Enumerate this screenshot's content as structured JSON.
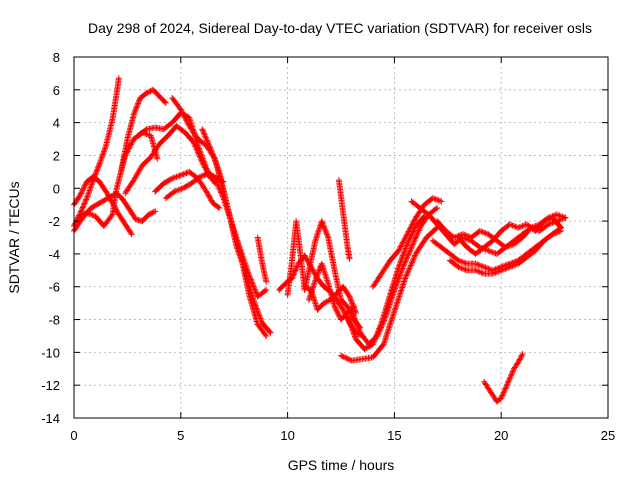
{
  "chart_data": {
    "type": "scatter",
    "title": "Day 298 of 2024, Sidereal Day-to-day VTEC variation (SDTVAR) for receiver osls",
    "xlabel": "GPS time / hours",
    "ylabel": "SDTVAR / TECUs",
    "xlim": [
      0,
      25
    ],
    "ylim": [
      -14,
      8
    ],
    "xticks": [
      0,
      5,
      10,
      15,
      20,
      25
    ],
    "yticks": [
      -14,
      -12,
      -10,
      -8,
      -6,
      -4,
      -2,
      0,
      2,
      4,
      6,
      8
    ],
    "grid": true,
    "marker": "plus",
    "color": "#ff0000",
    "series": [
      {
        "x": [
          0.0,
          0.3,
          0.6,
          0.9,
          1.2,
          1.5,
          1.8,
          2.0,
          2.1
        ],
        "y": [
          -2.3,
          -1.5,
          -0.6,
          0.5,
          1.5,
          2.6,
          4.2,
          5.8,
          6.7
        ]
      },
      {
        "x": [
          0.0,
          0.3,
          0.6,
          0.9,
          1.2,
          1.5,
          1.8,
          2.1,
          2.4,
          2.7
        ],
        "y": [
          -1.0,
          -0.4,
          0.4,
          0.7,
          0.4,
          -0.2,
          -0.9,
          -1.6,
          -2.2,
          -2.8
        ]
      },
      {
        "x": [
          0.0,
          0.4,
          0.8,
          1.2,
          1.6,
          2.0,
          2.3,
          2.6,
          2.9,
          3.2,
          3.5,
          3.8
        ],
        "y": [
          -2.6,
          -1.8,
          -1.2,
          -0.9,
          -0.6,
          -0.3,
          -0.7,
          -1.3,
          -1.9,
          -2.0,
          -1.6,
          -1.4
        ]
      },
      {
        "x": [
          0.2,
          0.6,
          1.0,
          1.4,
          1.8,
          2.0,
          2.4,
          2.8,
          3.2,
          3.6,
          3.9
        ],
        "y": [
          -1.8,
          -1.5,
          -1.7,
          -2.3,
          -1.6,
          0.0,
          2.0,
          3.0,
          3.4,
          3.2,
          1.8
        ]
      },
      {
        "x": [
          2.2,
          2.5,
          2.8,
          3.1,
          3.4,
          3.7,
          4.0,
          4.3
        ],
        "y": [
          1.0,
          3.0,
          4.5,
          5.5,
          5.8,
          6.0,
          5.6,
          5.2
        ]
      },
      {
        "x": [
          2.4,
          2.8,
          3.2,
          3.6,
          4.0,
          4.4,
          4.8,
          5.2,
          5.6,
          6.0,
          6.4
        ],
        "y": [
          -0.3,
          0.5,
          1.4,
          1.9,
          2.7,
          3.2,
          3.8,
          3.4,
          2.8,
          1.6,
          0.6
        ]
      },
      {
        "x": [
          3.0,
          3.4,
          3.8,
          4.2,
          4.6,
          5.0,
          5.4,
          5.8,
          6.2,
          6.6
        ],
        "y": [
          3.2,
          3.6,
          3.7,
          3.6,
          4.0,
          4.6,
          4.3,
          2.6,
          1.2,
          0.3
        ]
      },
      {
        "x": [
          3.8,
          4.2,
          4.6,
          5.0,
          5.4,
          5.8,
          6.2,
          6.5,
          6.8
        ],
        "y": [
          -0.2,
          0.3,
          0.6,
          0.8,
          1.0,
          0.6,
          -0.2,
          -0.9,
          -1.2
        ]
      },
      {
        "x": [
          4.3,
          4.7,
          5.1,
          5.5,
          5.9,
          6.3,
          6.7,
          7.0
        ],
        "y": [
          -0.6,
          -0.2,
          0.0,
          0.3,
          0.7,
          0.9,
          0.6,
          0.4
        ]
      },
      {
        "x": [
          4.6,
          5.0,
          5.4,
          5.8,
          6.2,
          6.6,
          7.0,
          7.4,
          7.8,
          8.2,
          8.6,
          9.0
        ],
        "y": [
          5.5,
          4.8,
          3.8,
          3.0,
          2.6,
          1.8,
          -0.2,
          -2.2,
          -4.0,
          -6.5,
          -8.3,
          -9.0
        ]
      },
      {
        "x": [
          6.0,
          6.4,
          6.8,
          7.2,
          7.6,
          8.0,
          8.4,
          8.8,
          9.2
        ],
        "y": [
          3.6,
          2.4,
          1.0,
          -1.2,
          -3.5,
          -5.0,
          -6.8,
          -8.2,
          -8.8
        ]
      },
      {
        "x": [
          6.2,
          6.6,
          7.0,
          7.4,
          7.8,
          8.2,
          8.6,
          9.0
        ],
        "y": [
          0.9,
          0.6,
          -0.6,
          -2.2,
          -3.8,
          -5.3,
          -6.6,
          -6.2
        ]
      },
      {
        "x": [
          8.6,
          8.8,
          9.0
        ],
        "y": [
          -3.0,
          -4.5,
          -5.7
        ]
      },
      {
        "x": [
          9.6,
          9.9,
          10.2,
          10.5,
          10.8,
          11.1,
          11.4,
          11.7,
          12.0,
          12.3,
          12.6,
          12.9,
          13.2,
          13.5
        ],
        "y": [
          -6.2,
          -5.8,
          -5.5,
          -4.6,
          -4.1,
          -4.8,
          -5.5,
          -6.0,
          -6.3,
          -6.8,
          -7.4,
          -8.2,
          -8.8,
          -9.0
        ]
      },
      {
        "x": [
          10.0,
          10.2,
          10.4,
          10.6,
          10.8,
          11.0,
          11.3,
          11.6,
          11.9,
          12.2,
          12.5,
          12.8,
          13.1,
          13.4
        ],
        "y": [
          -6.5,
          -4.5,
          -2.0,
          -4.0,
          -6.2,
          -5.0,
          -3.2,
          -2.0,
          -3.0,
          -5.0,
          -6.8,
          -7.2,
          -8.0,
          -8.5
        ]
      },
      {
        "x": [
          10.8,
          11.1,
          11.4,
          11.7,
          12.0,
          12.3,
          12.6,
          12.9,
          13.2
        ],
        "y": [
          -6.0,
          -6.2,
          -7.4,
          -7.0,
          -6.8,
          -6.4,
          -6.0,
          -6.6,
          -7.6
        ]
      },
      {
        "x": [
          11.0,
          11.3,
          11.6,
          11.9,
          12.2,
          12.5,
          12.8,
          13.1
        ],
        "y": [
          -6.8,
          -5.6,
          -4.6,
          -5.8,
          -7.2,
          -8.0,
          -7.6,
          -7.2
        ]
      },
      {
        "x": [
          12.4,
          12.6,
          12.8,
          12.9
        ],
        "y": [
          0.5,
          -1.5,
          -3.5,
          -4.3
        ]
      },
      {
        "x": [
          13.0,
          13.4,
          13.8,
          14.2,
          14.6,
          15.0,
          15.4,
          15.8,
          16.2,
          16.6,
          17.0
        ],
        "y": [
          -7.5,
          -8.8,
          -9.5,
          -9.0,
          -7.8,
          -6.2,
          -4.8,
          -3.6,
          -2.4,
          -1.6,
          -1.2
        ]
      },
      {
        "x": [
          12.8,
          13.2,
          13.6,
          14.0,
          14.4,
          14.8,
          15.2,
          15.6,
          16.0,
          16.4
        ],
        "y": [
          -7.8,
          -9.2,
          -9.8,
          -9.5,
          -8.2,
          -6.5,
          -4.8,
          -3.4,
          -2.3,
          -1.7
        ]
      },
      {
        "x": [
          14.0,
          14.4,
          14.8,
          15.2,
          15.6,
          16.0,
          16.4,
          16.8,
          17.2
        ],
        "y": [
          -6.0,
          -5.2,
          -4.4,
          -3.8,
          -2.8,
          -1.8,
          -1.0,
          -0.6,
          -0.8
        ]
      },
      {
        "x": [
          12.5,
          13.0,
          13.5,
          14.0,
          14.5,
          15.0,
          15.5,
          16.0,
          16.5,
          17.0
        ],
        "y": [
          -10.2,
          -10.5,
          -10.4,
          -10.3,
          -9.5,
          -7.5,
          -5.5,
          -4.0,
          -3.0,
          -2.4
        ]
      },
      {
        "x": [
          15.8,
          16.2,
          16.6,
          17.0,
          17.4,
          17.8,
          18.2,
          18.6,
          19.0,
          19.4,
          19.8,
          20.2,
          20.6,
          21.0,
          21.4,
          21.8,
          22.2,
          22.6,
          23.0
        ],
        "y": [
          -0.8,
          -1.2,
          -1.6,
          -2.2,
          -2.8,
          -3.4,
          -3.0,
          -3.2,
          -3.6,
          -3.8,
          -4.0,
          -3.6,
          -3.2,
          -2.8,
          -2.4,
          -2.6,
          -2.2,
          -2.0,
          -1.8
        ]
      },
      {
        "x": [
          17.0,
          17.4,
          17.8,
          18.2,
          18.6,
          19.0,
          19.4,
          19.8,
          20.2,
          20.6,
          21.0,
          21.4,
          21.8,
          22.2,
          22.6,
          23.0
        ],
        "y": [
          -2.0,
          -2.6,
          -3.0,
          -2.8,
          -3.0,
          -2.6,
          -2.8,
          -3.2,
          -3.6,
          -3.4,
          -3.0,
          -2.4,
          -2.2,
          -1.8,
          -1.6,
          -1.8
        ]
      },
      {
        "x": [
          16.8,
          17.2,
          17.6,
          18.0,
          18.4,
          18.8,
          19.2,
          19.6,
          20.0,
          20.4,
          20.8,
          21.2,
          21.6,
          22.0,
          22.4,
          22.8
        ],
        "y": [
          -3.2,
          -3.6,
          -4.0,
          -4.4,
          -4.6,
          -4.6,
          -4.8,
          -5.0,
          -4.8,
          -4.6,
          -4.4,
          -4.0,
          -3.6,
          -3.2,
          -2.8,
          -2.4
        ]
      },
      {
        "x": [
          17.6,
          18.0,
          18.4,
          18.8,
          19.2,
          19.6,
          20.0,
          20.4,
          20.8,
          21.2,
          21.6,
          22.0,
          22.4,
          22.8
        ],
        "y": [
          -4.4,
          -4.8,
          -5.0,
          -5.0,
          -5.2,
          -5.2,
          -5.0,
          -4.8,
          -4.6,
          -4.2,
          -3.8,
          -3.2,
          -2.8,
          -2.6
        ]
      },
      {
        "x": [
          18.0,
          18.4,
          18.8,
          19.2,
          19.6,
          20.0,
          20.4,
          20.8,
          21.2,
          21.6,
          22.0,
          22.4,
          22.8
        ],
        "y": [
          -3.0,
          -3.6,
          -4.0,
          -3.6,
          -3.2,
          -2.6,
          -2.2,
          -2.4,
          -2.2,
          -2.6,
          -2.0,
          -1.8,
          -2.4
        ]
      },
      {
        "x": [
          19.2,
          19.4,
          19.6,
          19.8,
          20.0,
          20.2,
          20.4,
          20.6,
          20.8,
          21.0
        ],
        "y": [
          -11.8,
          -12.2,
          -12.6,
          -13.0,
          -12.8,
          -12.2,
          -11.6,
          -11.0,
          -10.6,
          -10.1
        ]
      }
    ]
  }
}
